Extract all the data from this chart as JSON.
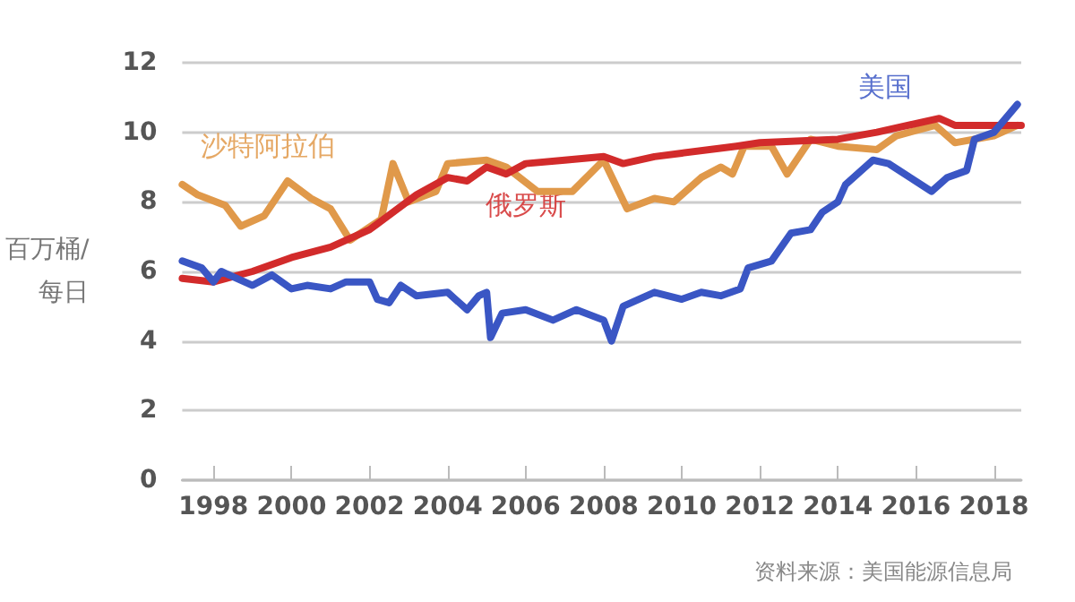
{
  "chart_data": {
    "type": "line",
    "ylabel": "百万桶/每日",
    "annotations": [
      "资料来源：美国能源信息局"
    ],
    "xlim": [
      1997.2,
      2018.7
    ],
    "xticks": [
      1998,
      2000,
      2002,
      2004,
      2006,
      2008,
      2010,
      2012,
      2014,
      2016,
      2018
    ],
    "ylim": [
      0,
      12
    ],
    "yticks": [
      0,
      2,
      4,
      6,
      8,
      10,
      12
    ],
    "grid": "y",
    "legend": false,
    "marker": "none",
    "line_style": "solid",
    "series": [
      {
        "name": "沙特阿拉伯",
        "color": "#e0994a",
        "x": [
          1997.2,
          1997.6,
          1998.3,
          1998.7,
          1999.3,
          1999.9,
          2000.5,
          2001.0,
          2001.5,
          2002.3,
          2002.6,
          2003.0,
          2003.7,
          2004.0,
          2005.0,
          2005.5,
          2006.3,
          2007.2,
          2008.0,
          2008.6,
          2009.3,
          2009.8,
          2010.5,
          2011.0,
          2011.3,
          2011.6,
          2012.3,
          2012.7,
          2013.3,
          2014.0,
          2015.0,
          2015.5,
          2016.5,
          2017.0,
          2018.0,
          2018.6
        ],
        "values": [
          8.5,
          8.2,
          7.9,
          7.3,
          7.6,
          8.6,
          8.1,
          7.8,
          6.9,
          7.5,
          9.1,
          8.0,
          8.3,
          9.1,
          9.2,
          9.0,
          8.3,
          8.3,
          9.2,
          7.8,
          8.1,
          8.0,
          8.7,
          9.0,
          8.8,
          9.6,
          9.6,
          8.8,
          9.8,
          9.6,
          9.5,
          9.9,
          10.2,
          9.7,
          9.9,
          10.2
        ]
      },
      {
        "name": "俄罗斯",
        "color": "#d22b2b",
        "x": [
          1997.2,
          1998.0,
          1999.0,
          2000.0,
          2001.0,
          2002.0,
          2003.2,
          2004.0,
          2004.5,
          2005.0,
          2005.5,
          2006.0,
          2007.0,
          2008.0,
          2008.5,
          2009.3,
          2010.0,
          2011.4,
          2012.0,
          2014.0,
          2015.0,
          2016.6,
          2017.0,
          2018.0,
          2018.7
        ],
        "values": [
          5.8,
          5.7,
          6.0,
          6.4,
          6.7,
          7.2,
          8.2,
          8.7,
          8.6,
          9.0,
          8.8,
          9.1,
          9.2,
          9.3,
          9.1,
          9.3,
          9.4,
          9.6,
          9.7,
          9.8,
          10.0,
          10.4,
          10.2,
          10.2,
          10.2
        ]
      },
      {
        "name": "美国",
        "color": "#3a56c4",
        "x": [
          1997.2,
          1997.7,
          1998.0,
          1998.2,
          1999.0,
          1999.5,
          2000.0,
          2000.4,
          2001.0,
          2001.4,
          2002.0,
          2002.2,
          2002.5,
          2002.8,
          2003.2,
          2004.0,
          2004.5,
          2004.8,
          2005.0,
          2005.1,
          2005.4,
          2006.0,
          2006.7,
          2007.3,
          2008.0,
          2008.2,
          2008.5,
          2009.3,
          2010.0,
          2010.5,
          2011.0,
          2011.5,
          2011.7,
          2012.3,
          2012.8,
          2013.3,
          2013.6,
          2014.0,
          2014.2,
          2014.9,
          2015.3,
          2016.4,
          2016.8,
          2017.3,
          2017.5,
          2018.0,
          2018.6
        ],
        "values": [
          6.3,
          6.1,
          5.7,
          6.0,
          5.6,
          5.9,
          5.5,
          5.6,
          5.5,
          5.7,
          5.7,
          5.2,
          5.1,
          5.6,
          5.3,
          5.4,
          4.9,
          5.3,
          5.4,
          4.1,
          4.8,
          4.9,
          4.6,
          4.9,
          4.6,
          4.0,
          5.0,
          5.4,
          5.2,
          5.4,
          5.3,
          5.5,
          6.1,
          6.3,
          7.1,
          7.2,
          7.7,
          8.0,
          8.5,
          9.2,
          9.1,
          8.3,
          8.7,
          8.9,
          9.8,
          10.0,
          10.8
        ]
      }
    ]
  }
}
